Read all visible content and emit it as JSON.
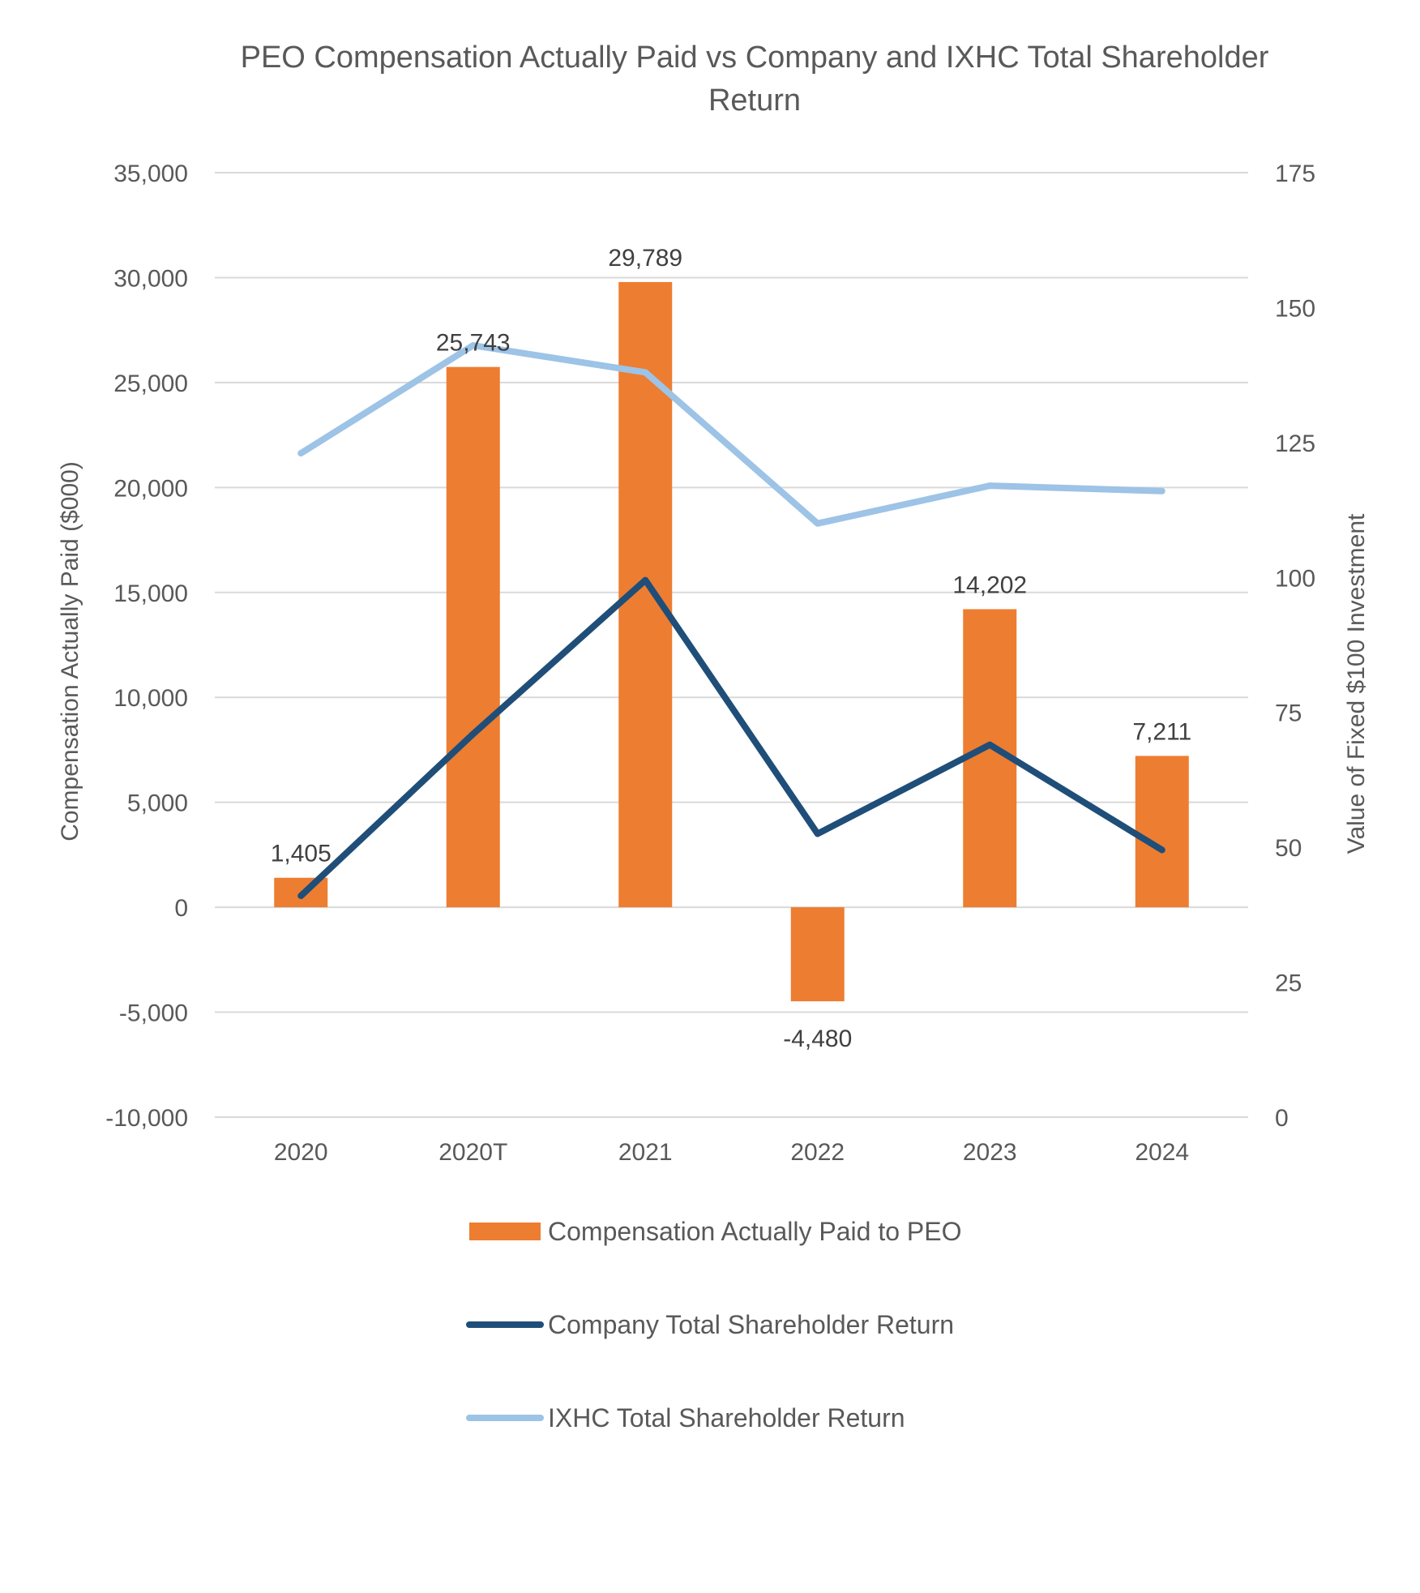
{
  "chart_data": {
    "type": "bar",
    "title_lines": [
      "PEO Compensation Actually Paid vs Company and IXHC Total Shareholder",
      "Return"
    ],
    "categories": [
      "2020",
      "2020T",
      "2021",
      "2022",
      "2023",
      "2024"
    ],
    "series": [
      {
        "name": "Compensation Actually Paid to PEO",
        "type": "bar",
        "axis": "left",
        "color": "#ED7D31",
        "values": [
          1405,
          25743,
          29789,
          -4480,
          14202,
          7211
        ],
        "labels": [
          "1,405",
          "25,743",
          "29,789",
          "-4,480",
          "14,202",
          "7,211"
        ]
      },
      {
        "name": "Company Total Shareholder Return",
        "type": "line",
        "axis": "right",
        "color": "#1F4E79",
        "values": [
          41,
          71,
          99.5,
          52.5,
          69,
          49.5
        ]
      },
      {
        "name": "IXHC Total Shareholder Return",
        "type": "line",
        "axis": "right",
        "color": "#9DC3E6",
        "values": [
          123,
          143,
          138,
          110,
          117,
          116
        ]
      }
    ],
    "y_left": {
      "label": "Compensation Actually Paid ($000)",
      "min": -10000,
      "max": 35000,
      "ticks": [
        35000,
        30000,
        25000,
        20000,
        15000,
        10000,
        5000,
        0,
        -5000,
        -10000
      ],
      "tick_labels": [
        "35,000",
        "30,000",
        "25,000",
        "20,000",
        "15,000",
        "10,000",
        "5,000",
        "0",
        "-5,000",
        "-10,000"
      ]
    },
    "y_right": {
      "label": "Value of Fixed $100 Investment",
      "min": 0,
      "max": 175,
      "ticks": [
        175,
        150,
        125,
        100,
        75,
        50,
        25,
        0
      ],
      "tick_labels": [
        "175",
        "150",
        "125",
        "100",
        "75",
        "50",
        "25",
        "0"
      ]
    },
    "grid": true,
    "legend_position": "bottom"
  }
}
